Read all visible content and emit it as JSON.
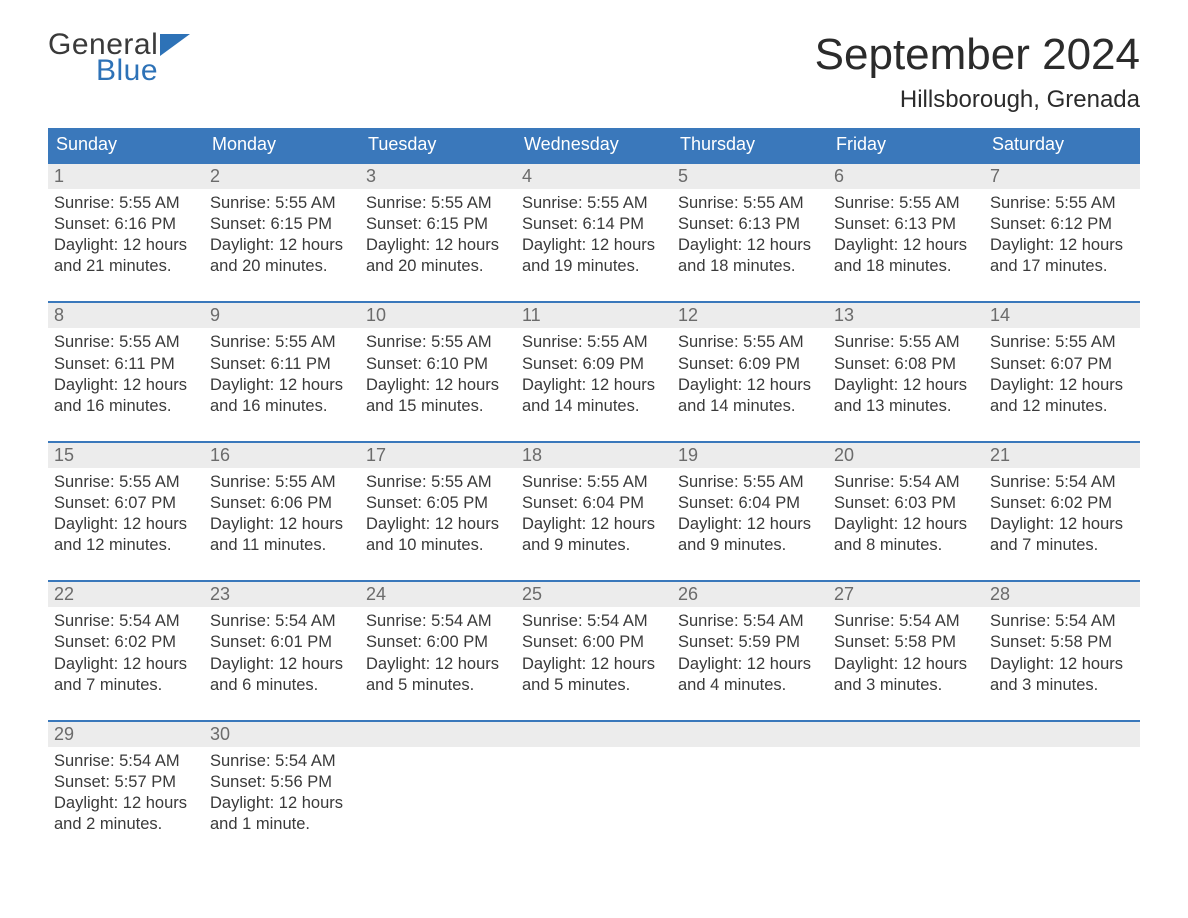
{
  "brand": {
    "top": "General",
    "bottom": "Blue",
    "top_color": "#3a3a3a",
    "bottom_color": "#2d72b7",
    "flag_color": "#2d72b7"
  },
  "title": "September 2024",
  "location": "Hillsborough, Grenada",
  "colors": {
    "header_bg": "#3a78bb",
    "header_text": "#ffffff",
    "daynum_bg": "#ececec",
    "daynum_text": "#6b6b6b",
    "body_text": "#3a3a3a",
    "week_border": "#3a78bb",
    "background": "#ffffff"
  },
  "fonts": {
    "title_size_pt": 33,
    "location_size_pt": 18,
    "weekday_size_pt": 14,
    "body_size_pt": 12
  },
  "weekdays": [
    "Sunday",
    "Monday",
    "Tuesday",
    "Wednesday",
    "Thursday",
    "Friday",
    "Saturday"
  ],
  "weeks": [
    [
      {
        "n": "1",
        "sr": "Sunrise: 5:55 AM",
        "ss": "Sunset: 6:16 PM",
        "d1": "Daylight: 12 hours",
        "d2": "and 21 minutes."
      },
      {
        "n": "2",
        "sr": "Sunrise: 5:55 AM",
        "ss": "Sunset: 6:15 PM",
        "d1": "Daylight: 12 hours",
        "d2": "and 20 minutes."
      },
      {
        "n": "3",
        "sr": "Sunrise: 5:55 AM",
        "ss": "Sunset: 6:15 PM",
        "d1": "Daylight: 12 hours",
        "d2": "and 20 minutes."
      },
      {
        "n": "4",
        "sr": "Sunrise: 5:55 AM",
        "ss": "Sunset: 6:14 PM",
        "d1": "Daylight: 12 hours",
        "d2": "and 19 minutes."
      },
      {
        "n": "5",
        "sr": "Sunrise: 5:55 AM",
        "ss": "Sunset: 6:13 PM",
        "d1": "Daylight: 12 hours",
        "d2": "and 18 minutes."
      },
      {
        "n": "6",
        "sr": "Sunrise: 5:55 AM",
        "ss": "Sunset: 6:13 PM",
        "d1": "Daylight: 12 hours",
        "d2": "and 18 minutes."
      },
      {
        "n": "7",
        "sr": "Sunrise: 5:55 AM",
        "ss": "Sunset: 6:12 PM",
        "d1": "Daylight: 12 hours",
        "d2": "and 17 minutes."
      }
    ],
    [
      {
        "n": "8",
        "sr": "Sunrise: 5:55 AM",
        "ss": "Sunset: 6:11 PM",
        "d1": "Daylight: 12 hours",
        "d2": "and 16 minutes."
      },
      {
        "n": "9",
        "sr": "Sunrise: 5:55 AM",
        "ss": "Sunset: 6:11 PM",
        "d1": "Daylight: 12 hours",
        "d2": "and 16 minutes."
      },
      {
        "n": "10",
        "sr": "Sunrise: 5:55 AM",
        "ss": "Sunset: 6:10 PM",
        "d1": "Daylight: 12 hours",
        "d2": "and 15 minutes."
      },
      {
        "n": "11",
        "sr": "Sunrise: 5:55 AM",
        "ss": "Sunset: 6:09 PM",
        "d1": "Daylight: 12 hours",
        "d2": "and 14 minutes."
      },
      {
        "n": "12",
        "sr": "Sunrise: 5:55 AM",
        "ss": "Sunset: 6:09 PM",
        "d1": "Daylight: 12 hours",
        "d2": "and 14 minutes."
      },
      {
        "n": "13",
        "sr": "Sunrise: 5:55 AM",
        "ss": "Sunset: 6:08 PM",
        "d1": "Daylight: 12 hours",
        "d2": "and 13 minutes."
      },
      {
        "n": "14",
        "sr": "Sunrise: 5:55 AM",
        "ss": "Sunset: 6:07 PM",
        "d1": "Daylight: 12 hours",
        "d2": "and 12 minutes."
      }
    ],
    [
      {
        "n": "15",
        "sr": "Sunrise: 5:55 AM",
        "ss": "Sunset: 6:07 PM",
        "d1": "Daylight: 12 hours",
        "d2": "and 12 minutes."
      },
      {
        "n": "16",
        "sr": "Sunrise: 5:55 AM",
        "ss": "Sunset: 6:06 PM",
        "d1": "Daylight: 12 hours",
        "d2": "and 11 minutes."
      },
      {
        "n": "17",
        "sr": "Sunrise: 5:55 AM",
        "ss": "Sunset: 6:05 PM",
        "d1": "Daylight: 12 hours",
        "d2": "and 10 minutes."
      },
      {
        "n": "18",
        "sr": "Sunrise: 5:55 AM",
        "ss": "Sunset: 6:04 PM",
        "d1": "Daylight: 12 hours",
        "d2": "and 9 minutes."
      },
      {
        "n": "19",
        "sr": "Sunrise: 5:55 AM",
        "ss": "Sunset: 6:04 PM",
        "d1": "Daylight: 12 hours",
        "d2": "and 9 minutes."
      },
      {
        "n": "20",
        "sr": "Sunrise: 5:54 AM",
        "ss": "Sunset: 6:03 PM",
        "d1": "Daylight: 12 hours",
        "d2": "and 8 minutes."
      },
      {
        "n": "21",
        "sr": "Sunrise: 5:54 AM",
        "ss": "Sunset: 6:02 PM",
        "d1": "Daylight: 12 hours",
        "d2": "and 7 minutes."
      }
    ],
    [
      {
        "n": "22",
        "sr": "Sunrise: 5:54 AM",
        "ss": "Sunset: 6:02 PM",
        "d1": "Daylight: 12 hours",
        "d2": "and 7 minutes."
      },
      {
        "n": "23",
        "sr": "Sunrise: 5:54 AM",
        "ss": "Sunset: 6:01 PM",
        "d1": "Daylight: 12 hours",
        "d2": "and 6 minutes."
      },
      {
        "n": "24",
        "sr": "Sunrise: 5:54 AM",
        "ss": "Sunset: 6:00 PM",
        "d1": "Daylight: 12 hours",
        "d2": "and 5 minutes."
      },
      {
        "n": "25",
        "sr": "Sunrise: 5:54 AM",
        "ss": "Sunset: 6:00 PM",
        "d1": "Daylight: 12 hours",
        "d2": "and 5 minutes."
      },
      {
        "n": "26",
        "sr": "Sunrise: 5:54 AM",
        "ss": "Sunset: 5:59 PM",
        "d1": "Daylight: 12 hours",
        "d2": "and 4 minutes."
      },
      {
        "n": "27",
        "sr": "Sunrise: 5:54 AM",
        "ss": "Sunset: 5:58 PM",
        "d1": "Daylight: 12 hours",
        "d2": "and 3 minutes."
      },
      {
        "n": "28",
        "sr": "Sunrise: 5:54 AM",
        "ss": "Sunset: 5:58 PM",
        "d1": "Daylight: 12 hours",
        "d2": "and 3 minutes."
      }
    ],
    [
      {
        "n": "29",
        "sr": "Sunrise: 5:54 AM",
        "ss": "Sunset: 5:57 PM",
        "d1": "Daylight: 12 hours",
        "d2": "and 2 minutes."
      },
      {
        "n": "30",
        "sr": "Sunrise: 5:54 AM",
        "ss": "Sunset: 5:56 PM",
        "d1": "Daylight: 12 hours",
        "d2": "and 1 minute."
      },
      null,
      null,
      null,
      null,
      null
    ]
  ]
}
